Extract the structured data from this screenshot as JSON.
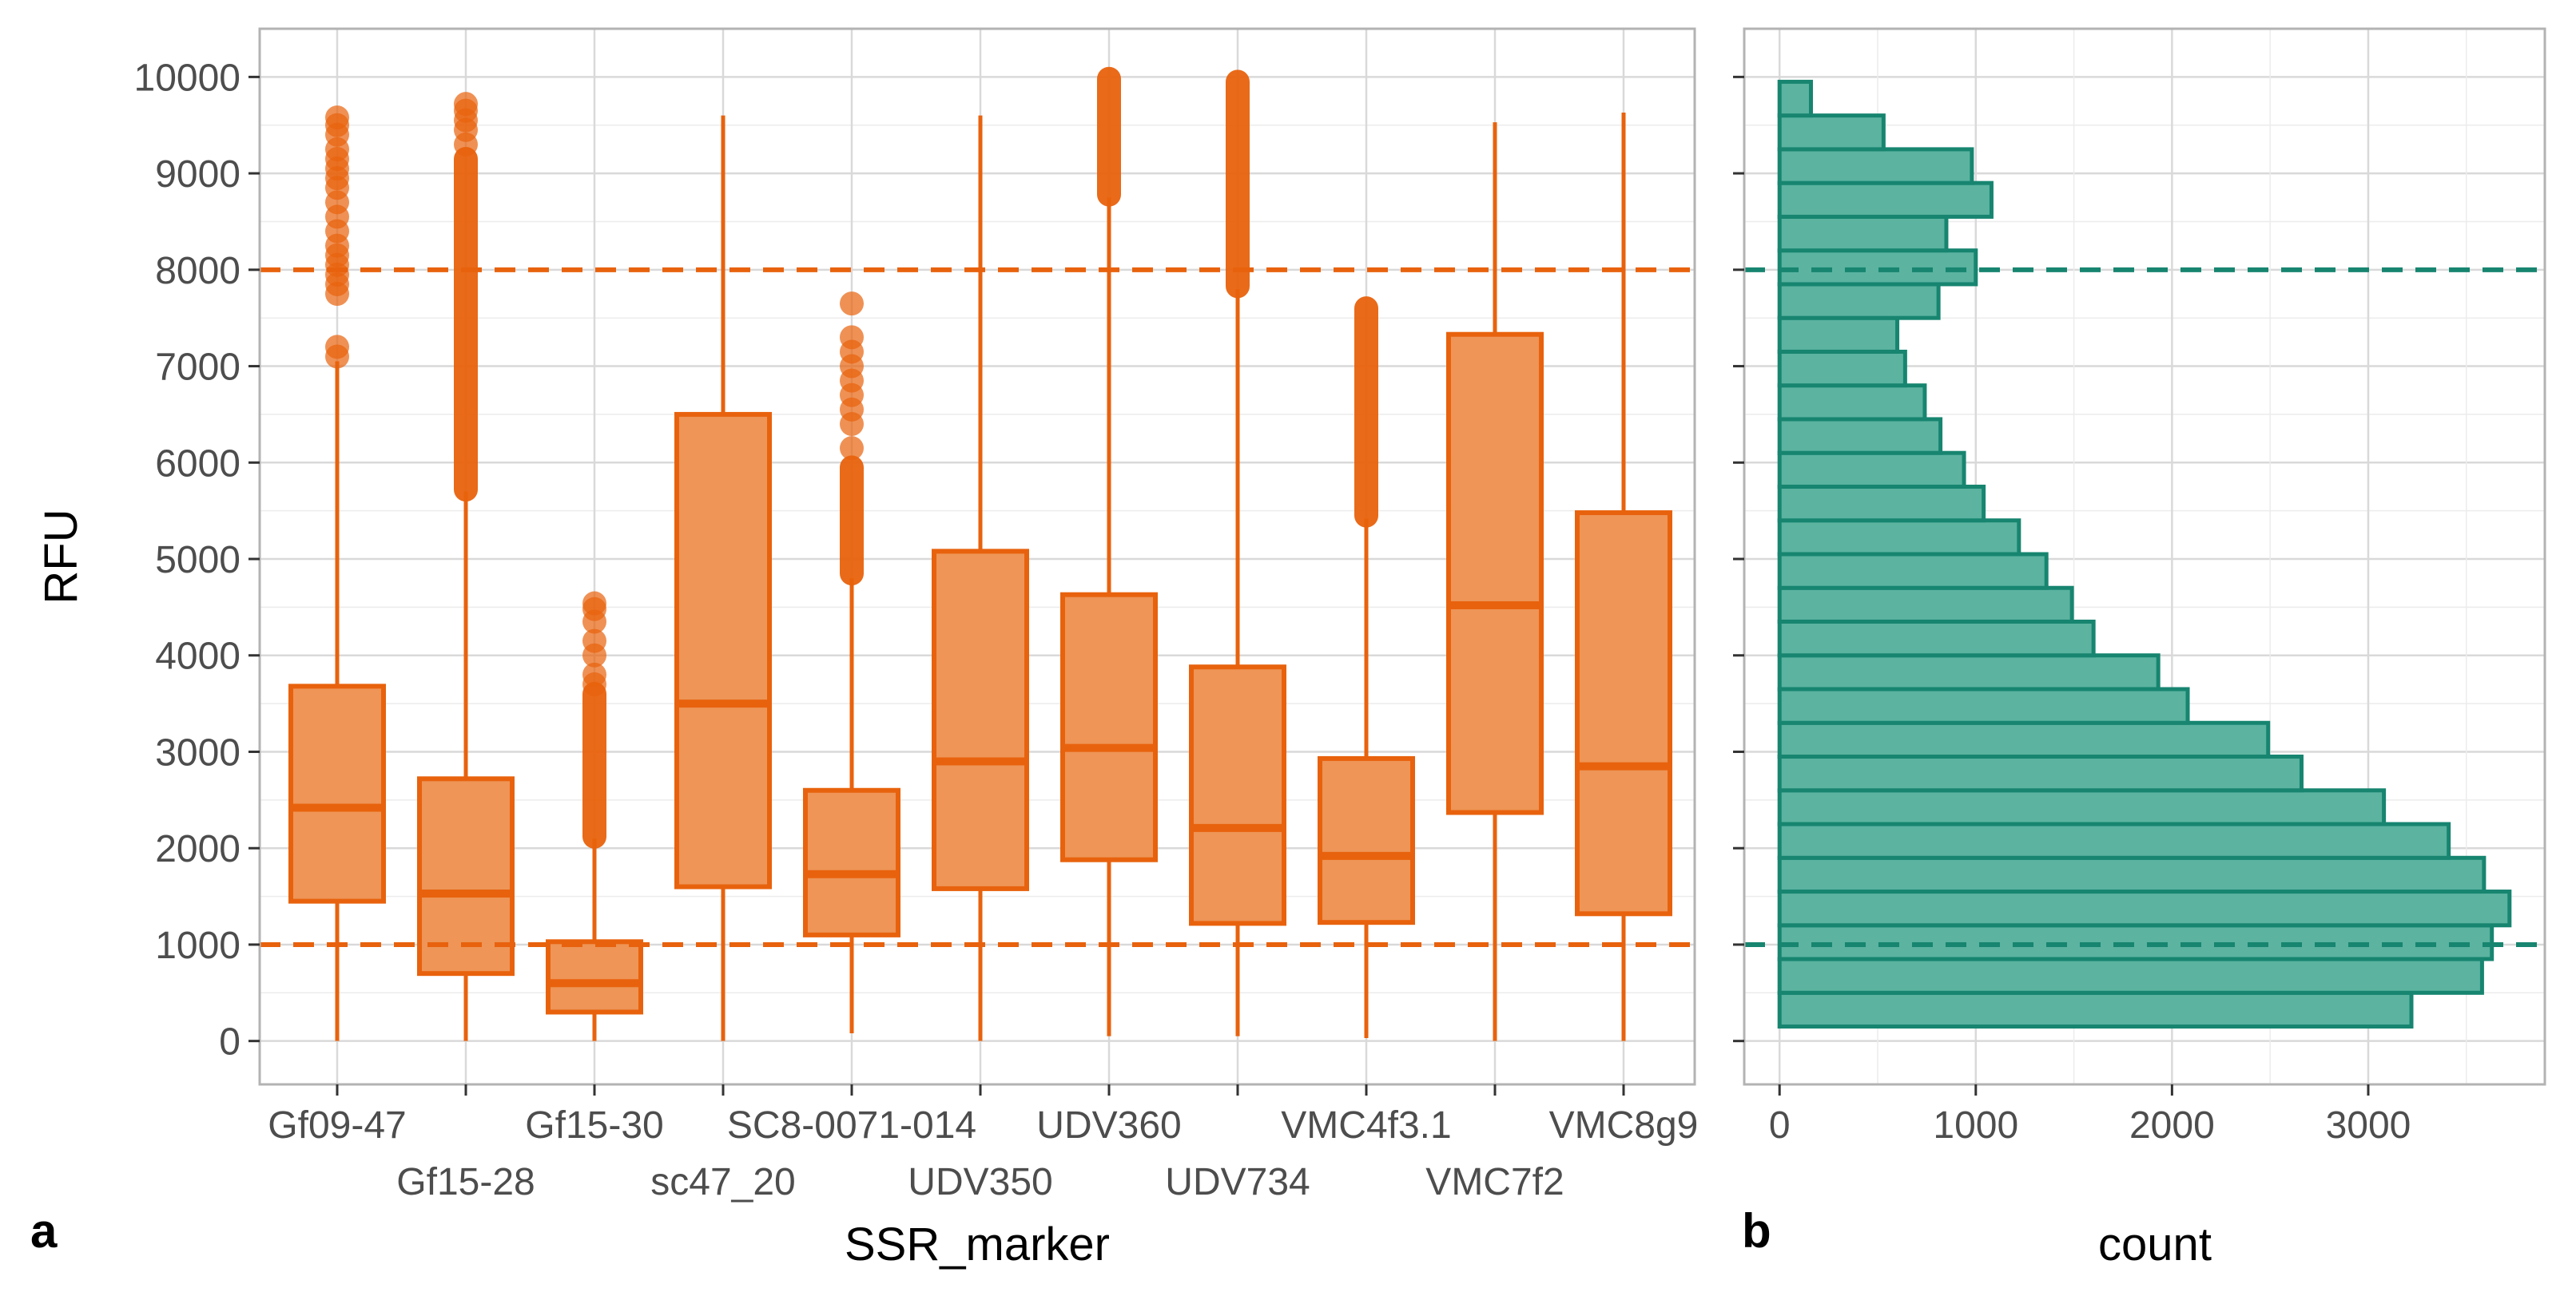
{
  "colors": {
    "box_fill": "#EE9557",
    "box_stroke": "#E8620D",
    "hist_fill": "#5BB3A0",
    "hist_stroke": "#178570",
    "grid_major": "#d9d9d9",
    "grid_minor": "#ececec",
    "panel_border": "#b3b3b3",
    "text": "#4d4d4d"
  },
  "chart_data": [
    {
      "type": "box",
      "panel_label": "a",
      "xlabel": "SSR_marker",
      "ylabel": "RFU",
      "ylim": [
        -450,
        10500
      ],
      "yticks": [
        0,
        1000,
        2000,
        3000,
        4000,
        5000,
        6000,
        7000,
        8000,
        9000,
        10000
      ],
      "ytick_labels": [
        "0",
        "1000",
        "2000",
        "3000",
        "4000",
        "5000",
        "6000",
        "7000",
        "8000",
        "9000",
        "10000"
      ],
      "threshold_lines": [
        1000,
        8000
      ],
      "categories": [
        "Gf09-47",
        "Gf15-28",
        "Gf15-30",
        "sc47_20",
        "SC8-0071-014",
        "UDV350",
        "UDV360",
        "UDV734",
        "VMC4f3.1",
        "VMC7f2",
        "VMC8g9"
      ],
      "boxes": [
        {
          "whisker_low": 0,
          "q1": 1450,
          "median": 2420,
          "q3": 3680,
          "whisker_high": 7050,
          "outliers": [
            7100,
            7200,
            7750,
            7850,
            7950,
            8050,
            8150,
            8250,
            8400,
            8550,
            8700,
            8850,
            8950,
            9050,
            9150,
            9250,
            9400,
            9500,
            9580
          ]
        },
        {
          "whisker_low": 0,
          "q1": 700,
          "median": 1530,
          "q3": 2720,
          "whisker_high": 5700,
          "outliers_dense": [
            5720,
            9150
          ],
          "outliers": [
            9300,
            9450,
            9550,
            9650,
            9720
          ]
        },
        {
          "whisker_low": 0,
          "q1": 300,
          "median": 600,
          "q3": 1030,
          "whisker_high": 2100,
          "outliers_dense": [
            2120,
            3600
          ],
          "outliers": [
            3700,
            3800,
            4000,
            4150,
            4350,
            4480,
            4540
          ]
        },
        {
          "whisker_low": 0,
          "q1": 1600,
          "median": 3500,
          "q3": 6500,
          "whisker_high": 9600,
          "outliers": []
        },
        {
          "whisker_low": 80,
          "q1": 1100,
          "median": 1730,
          "q3": 2600,
          "whisker_high": 4800,
          "outliers_dense": [
            4850,
            5950
          ],
          "outliers": [
            6150,
            6400,
            6550,
            6700,
            6850,
            7000,
            7150,
            7300,
            7650
          ]
        },
        {
          "whisker_low": 0,
          "q1": 1580,
          "median": 2900,
          "q3": 5080,
          "whisker_high": 9600,
          "outliers": []
        },
        {
          "whisker_low": 50,
          "q1": 1880,
          "median": 3040,
          "q3": 4630,
          "whisker_high": 8750,
          "outliers_dense": [
            8780,
            9980
          ],
          "outliers": []
        },
        {
          "whisker_low": 50,
          "q1": 1220,
          "median": 2210,
          "q3": 3880,
          "whisker_high": 7800,
          "outliers_dense": [
            7830,
            9950
          ],
          "outliers": []
        },
        {
          "whisker_low": 30,
          "q1": 1230,
          "median": 1920,
          "q3": 2930,
          "whisker_high": 5420,
          "outliers_dense": [
            5450,
            7600
          ],
          "outliers": []
        },
        {
          "whisker_low": 0,
          "q1": 2370,
          "median": 4520,
          "q3": 7330,
          "whisker_high": 9530,
          "outliers": []
        },
        {
          "whisker_low": 0,
          "q1": 1320,
          "median": 2850,
          "q3": 5480,
          "whisker_high": 9630,
          "outliers": []
        }
      ]
    },
    {
      "type": "histogram",
      "orientation": "horizontal",
      "panel_label": "b",
      "xlabel": "count",
      "ylabel": "RFU",
      "xlim": [
        -180,
        3900
      ],
      "ylim": [
        -450,
        10500
      ],
      "xticks": [
        0,
        1000,
        2000,
        3000
      ],
      "xtick_labels": [
        "0",
        "1000",
        "2000",
        "3000"
      ],
      "threshold_lines": [
        1000,
        8000
      ],
      "bins_rfu_from": [
        150,
        500,
        850,
        1200,
        1550,
        1900,
        2250,
        2600,
        2950,
        3300,
        3650,
        4000,
        4350,
        4700,
        5050,
        5400,
        5750,
        6100,
        6450,
        6800,
        7150,
        7500,
        7850,
        8200,
        8550,
        8900,
        9250,
        9600
      ],
      "bin_width": 350,
      "counts": [
        3220,
        3580,
        3630,
        3720,
        3590,
        3410,
        3080,
        2660,
        2490,
        2080,
        1930,
        1600,
        1490,
        1360,
        1220,
        1040,
        940,
        820,
        740,
        640,
        600,
        810,
        1000,
        850,
        1080,
        980,
        530,
        160
      ]
    }
  ]
}
